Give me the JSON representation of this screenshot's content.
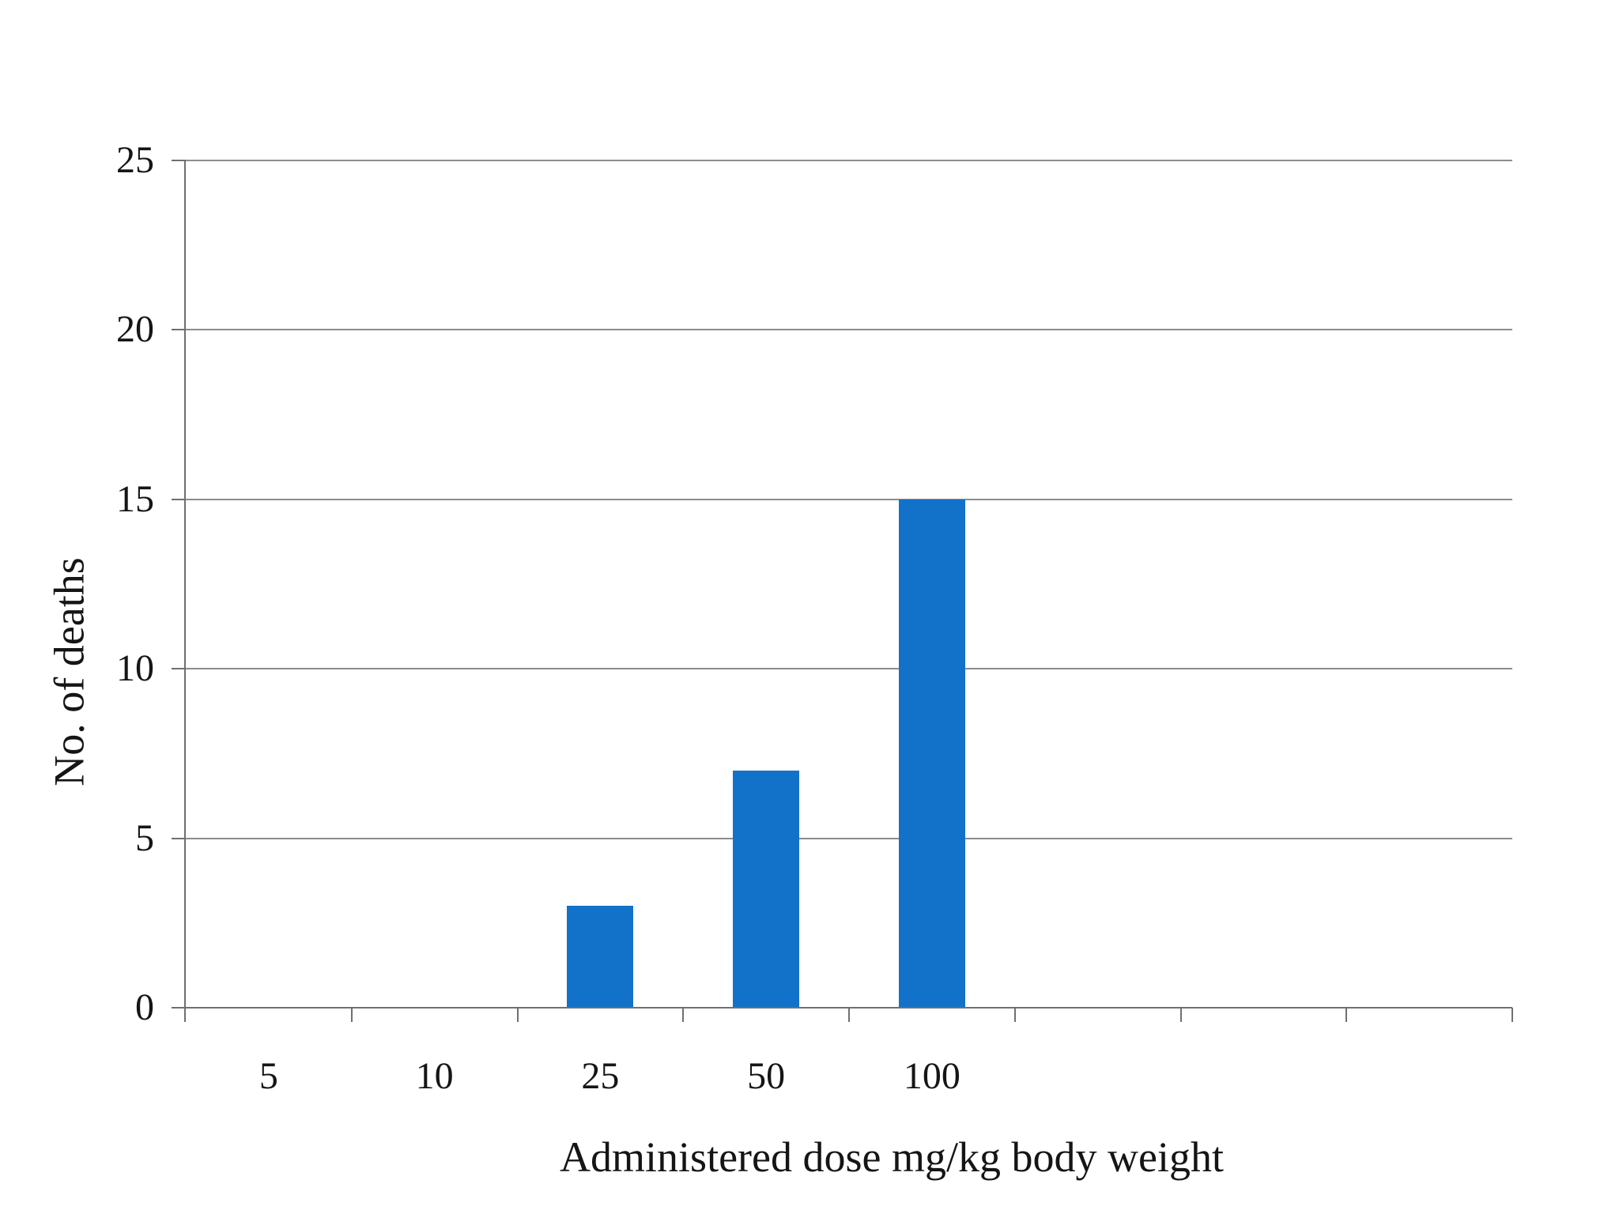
{
  "chart_data": {
    "type": "bar",
    "title": "",
    "xlabel": "Administered dose mg/kg body weight",
    "ylabel": "No. of deaths",
    "categories": [
      "5",
      "10",
      "25",
      "50",
      "100"
    ],
    "values": [
      0,
      0,
      3,
      7,
      15
    ],
    "series": [
      {
        "name": "No. of deaths",
        "values": [
          0,
          0,
          3,
          7,
          15
        ]
      }
    ],
    "ylim": [
      0,
      25
    ],
    "yticks": [
      0,
      5,
      10,
      15,
      20,
      25
    ],
    "total_x_slots": 8,
    "grid": "horizontal",
    "legend": "none",
    "colors": {
      "bar": "#1271c8",
      "gridline": "#8c8c8c",
      "axis": "#707070",
      "text": "#151515",
      "background": "#ffffff"
    }
  }
}
